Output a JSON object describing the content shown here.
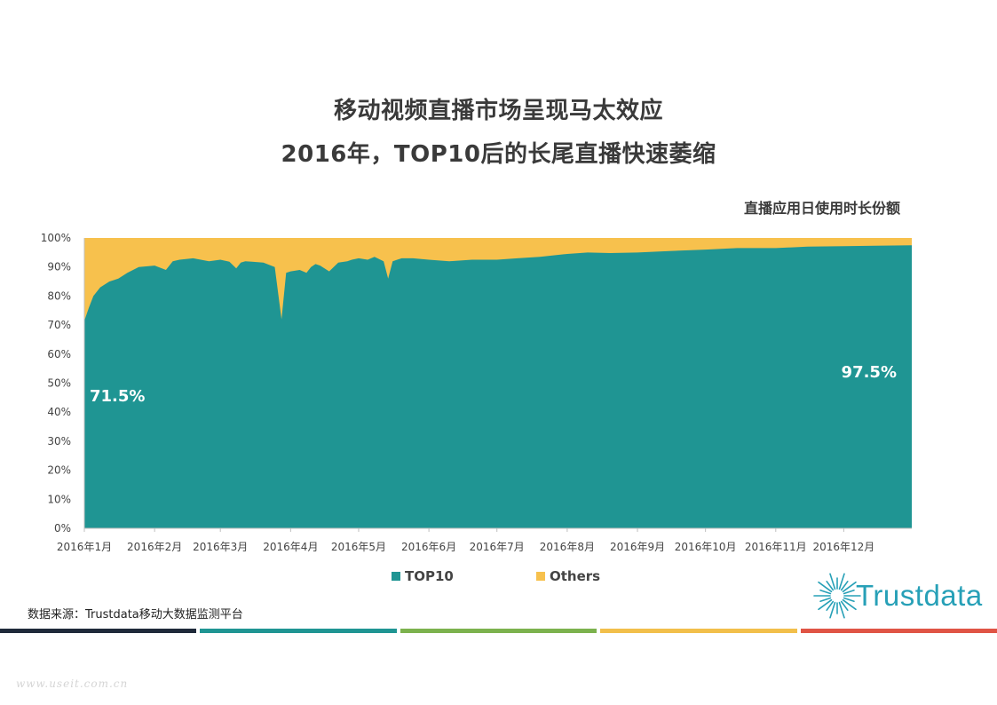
{
  "header": {
    "title_line1": "移动视频直播市场呈现马太效应",
    "title_line2": "2016年，TOP10后的长尾直播快速萎缩"
  },
  "chart_subtitle": "直播应用日使用时长份额",
  "chart_data": {
    "type": "area",
    "stacked": true,
    "percent": true,
    "x_ticks": [
      "2016年1月",
      "2016年2月",
      "2016年3月",
      "2016年4月",
      "2016年5月",
      "2016年6月",
      "2016年7月",
      "2016年8月",
      "2016年9月",
      "2016年10月",
      "2016年11月",
      "2016年12月"
    ],
    "y_ticks": [
      "0%",
      "10%",
      "20%",
      "30%",
      "40%",
      "50%",
      "60%",
      "70%",
      "80%",
      "90%",
      "100%"
    ],
    "ylim": [
      0,
      100
    ],
    "x": [
      "2016-01-01",
      "2016-01-03",
      "2016-01-05",
      "2016-01-08",
      "2016-01-12",
      "2016-01-16",
      "2016-01-20",
      "2016-01-25",
      "2016-02-01",
      "2016-02-06",
      "2016-02-09",
      "2016-02-12",
      "2016-02-18",
      "2016-02-25",
      "2016-03-01",
      "2016-03-05",
      "2016-03-08",
      "2016-03-10",
      "2016-03-12",
      "2016-03-15",
      "2016-03-20",
      "2016-03-25",
      "2016-03-28",
      "2016-03-30",
      "2016-04-01",
      "2016-04-05",
      "2016-04-08",
      "2016-04-10",
      "2016-04-12",
      "2016-04-14",
      "2016-04-18",
      "2016-04-22",
      "2016-04-26",
      "2016-04-28",
      "2016-05-01",
      "2016-05-05",
      "2016-05-08",
      "2016-05-12",
      "2016-05-14",
      "2016-05-16",
      "2016-05-18",
      "2016-05-20",
      "2016-05-25",
      "2016-06-01",
      "2016-06-10",
      "2016-06-20",
      "2016-07-01",
      "2016-07-10",
      "2016-07-20",
      "2016-08-01",
      "2016-08-10",
      "2016-08-20",
      "2016-09-01",
      "2016-09-15",
      "2016-10-01",
      "2016-10-15",
      "2016-11-01",
      "2016-11-15",
      "2016-12-01",
      "2016-12-15",
      "2016-12-31"
    ],
    "series": [
      {
        "name": "TOP10",
        "color": "#1f9593",
        "values": [
          71.5,
          76,
          80,
          83,
          85,
          86,
          88,
          90,
          90.5,
          89,
          92,
          92.5,
          93,
          92,
          92.5,
          91.8,
          89.5,
          91.5,
          92,
          91.8,
          91.5,
          90,
          72,
          88,
          88.5,
          89,
          88,
          90,
          91,
          90.5,
          88.5,
          91.5,
          92,
          92.5,
          93,
          92.5,
          93.5,
          92,
          86,
          92,
          92.5,
          93,
          93,
          92.5,
          92,
          92.5,
          92.5,
          93,
          93.5,
          94.5,
          95,
          94.8,
          95,
          95.5,
          96,
          96.5,
          96.5,
          97,
          97.2,
          97.3,
          97.5
        ]
      },
      {
        "name": "Others",
        "color": "#f7c14d"
      }
    ],
    "annotations": [
      {
        "text": "71.5%",
        "series": "TOP10",
        "at": "start"
      },
      {
        "text": "97.5%",
        "series": "TOP10",
        "at": "end"
      }
    ],
    "legend": "bottom-center",
    "grid": false
  },
  "legend": {
    "top10": "TOP10",
    "others": "Others"
  },
  "source": "数据来源：Trustdata移动大数据监测平台",
  "logo": {
    "text": "Trustdata",
    "icon": "sunburst-icon",
    "color": "#27a0b7"
  },
  "footer_bar_colors": [
    "#1f2a3a",
    "#1f9593",
    "#7cb24e",
    "#f2bf4b",
    "#e05445"
  ],
  "watermark": "www.useit.com.cn"
}
